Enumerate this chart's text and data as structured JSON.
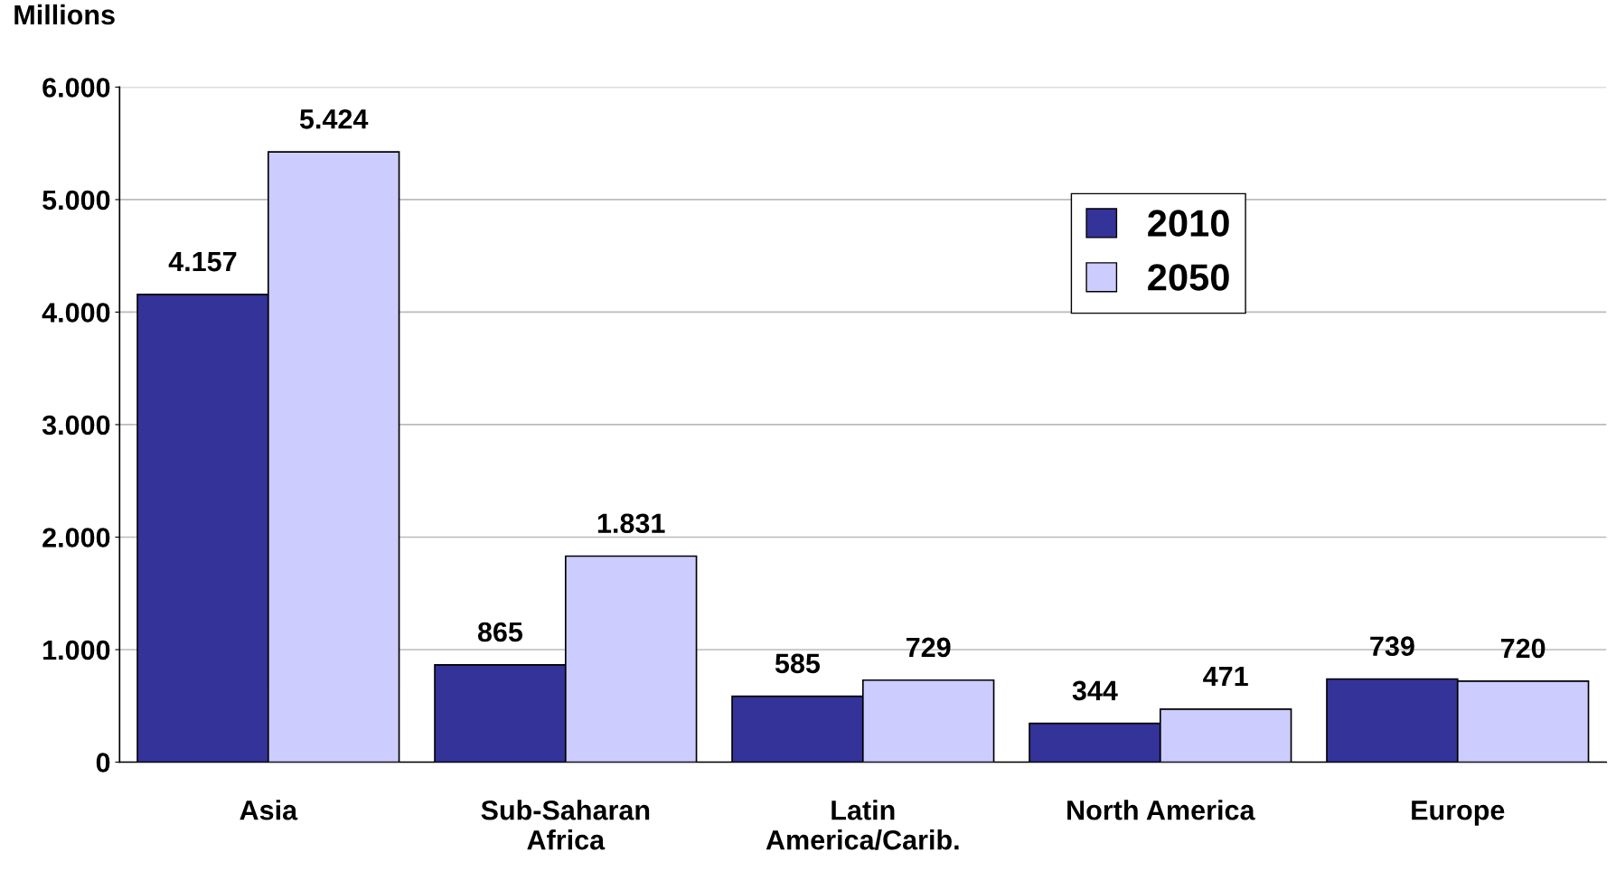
{
  "chart_data": {
    "type": "bar",
    "ylabel": "Millions",
    "categories": [
      "Asia",
      "Sub-Saharan\nAfrica",
      "Latin\nAmerica/Carib.",
      "North America",
      "Europe"
    ],
    "series": [
      {
        "name": "2010",
        "color": "#333399",
        "values": [
          4157,
          865,
          585,
          344,
          739
        ],
        "value_labels": [
          "4.157",
          "865",
          "585",
          "344",
          "739"
        ]
      },
      {
        "name": "2050",
        "color": "#ccccff",
        "values": [
          5424,
          1831,
          729,
          471,
          720
        ],
        "value_labels": [
          "5.424",
          "1.831",
          "729",
          "471",
          "720"
        ]
      }
    ],
    "ylim": [
      0,
      6000
    ],
    "yticks": [
      {
        "value": 0,
        "label": "0"
      },
      {
        "value": 1000,
        "label": "1.000"
      },
      {
        "value": 2000,
        "label": "2.000"
      },
      {
        "value": 3000,
        "label": "3.000"
      },
      {
        "value": 4000,
        "label": "4.000"
      },
      {
        "value": 5000,
        "label": "5.000"
      },
      {
        "value": 6000,
        "label": "6.000"
      }
    ],
    "grid": "y",
    "legend": "top right"
  }
}
